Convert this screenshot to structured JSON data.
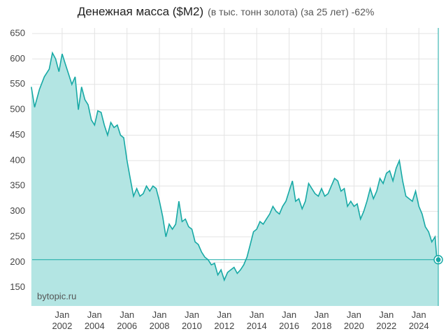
{
  "chart_data": {
    "type": "area",
    "title": "Денежная масса ($M2)",
    "subtitle": "(в тыс. тонн золота) (за 25 лет) -62%",
    "watermark": "bytopic.ru",
    "color": "#17a9a5",
    "fill_color": "#b3e5e3",
    "grid": true,
    "xlim": [
      2000.15,
      2025.2
    ],
    "ylim": [
      114,
      661
    ],
    "yticks": [
      150,
      200,
      250,
      300,
      350,
      400,
      450,
      500,
      550,
      600,
      650
    ],
    "xticks": [
      {
        "value": 2002,
        "label": "Jan 2002"
      },
      {
        "value": 2004,
        "label": "Jan 2004"
      },
      {
        "value": 2006,
        "label": "Jan 2006"
      },
      {
        "value": 2008,
        "label": "Jan 2008"
      },
      {
        "value": 2010,
        "label": "Jan 2010"
      },
      {
        "value": 2012,
        "label": "Jan 2012"
      },
      {
        "value": 2014,
        "label": "Jan 2014"
      },
      {
        "value": 2016,
        "label": "Jan 2016"
      },
      {
        "value": 2018,
        "label": "Jan 2018"
      },
      {
        "value": 2020,
        "label": "Jan 2020"
      },
      {
        "value": 2022,
        "label": "Jan 2022"
      },
      {
        "value": 2024,
        "label": "Jan 2024"
      }
    ],
    "reference_line": 205,
    "x": [
      2000.1,
      2000.3,
      2000.6,
      2000.9,
      2001.2,
      2001.4,
      2001.6,
      2001.8,
      2002.0,
      2002.2,
      2002.4,
      2002.6,
      2002.8,
      2003.0,
      2003.2,
      2003.4,
      2003.6,
      2003.8,
      2004.0,
      2004.2,
      2004.4,
      2004.6,
      2004.8,
      2005.0,
      2005.2,
      2005.4,
      2005.6,
      2005.8,
      2006.0,
      2006.2,
      2006.4,
      2006.6,
      2006.8,
      2007.0,
      2007.2,
      2007.4,
      2007.6,
      2007.8,
      2008.0,
      2008.2,
      2008.4,
      2008.6,
      2008.8,
      2009.0,
      2009.2,
      2009.4,
      2009.6,
      2009.8,
      2010.0,
      2010.2,
      2010.4,
      2010.6,
      2010.8,
      2011.0,
      2011.2,
      2011.4,
      2011.6,
      2011.8,
      2012.0,
      2012.2,
      2012.4,
      2012.6,
      2012.8,
      2013.0,
      2013.2,
      2013.4,
      2013.6,
      2013.8,
      2014.0,
      2014.2,
      2014.4,
      2014.6,
      2014.8,
      2015.0,
      2015.2,
      2015.4,
      2015.6,
      2015.8,
      2016.0,
      2016.2,
      2016.4,
      2016.6,
      2016.8,
      2017.0,
      2017.2,
      2017.4,
      2017.6,
      2017.8,
      2018.0,
      2018.2,
      2018.4,
      2018.6,
      2018.8,
      2019.0,
      2019.2,
      2019.4,
      2019.6,
      2019.8,
      2020.0,
      2020.2,
      2020.4,
      2020.6,
      2020.8,
      2021.0,
      2021.2,
      2021.4,
      2021.6,
      2021.8,
      2022.0,
      2022.2,
      2022.4,
      2022.6,
      2022.8,
      2023.0,
      2023.2,
      2023.4,
      2023.6,
      2023.8,
      2024.0,
      2024.2,
      2024.4,
      2024.6,
      2024.8,
      2025.0,
      2025.1,
      2025.2
    ],
    "values": [
      545,
      505,
      540,
      565,
      580,
      612,
      600,
      575,
      610,
      590,
      570,
      550,
      565,
      500,
      545,
      520,
      510,
      480,
      470,
      498,
      495,
      470,
      450,
      475,
      465,
      470,
      450,
      445,
      400,
      365,
      330,
      345,
      330,
      335,
      350,
      340,
      350,
      345,
      320,
      290,
      250,
      275,
      265,
      275,
      320,
      280,
      285,
      270,
      265,
      240,
      235,
      220,
      210,
      205,
      195,
      198,
      175,
      185,
      165,
      180,
      185,
      190,
      178,
      185,
      195,
      210,
      235,
      260,
      265,
      280,
      275,
      285,
      295,
      310,
      300,
      295,
      310,
      320,
      340,
      360,
      320,
      325,
      305,
      320,
      355,
      345,
      335,
      330,
      345,
      330,
      335,
      350,
      365,
      360,
      340,
      345,
      310,
      320,
      310,
      315,
      285,
      300,
      320,
      345,
      325,
      340,
      365,
      355,
      375,
      380,
      360,
      385,
      400,
      360,
      330,
      325,
      320,
      340,
      310,
      295,
      270,
      260,
      240,
      250,
      210,
      205
    ]
  }
}
